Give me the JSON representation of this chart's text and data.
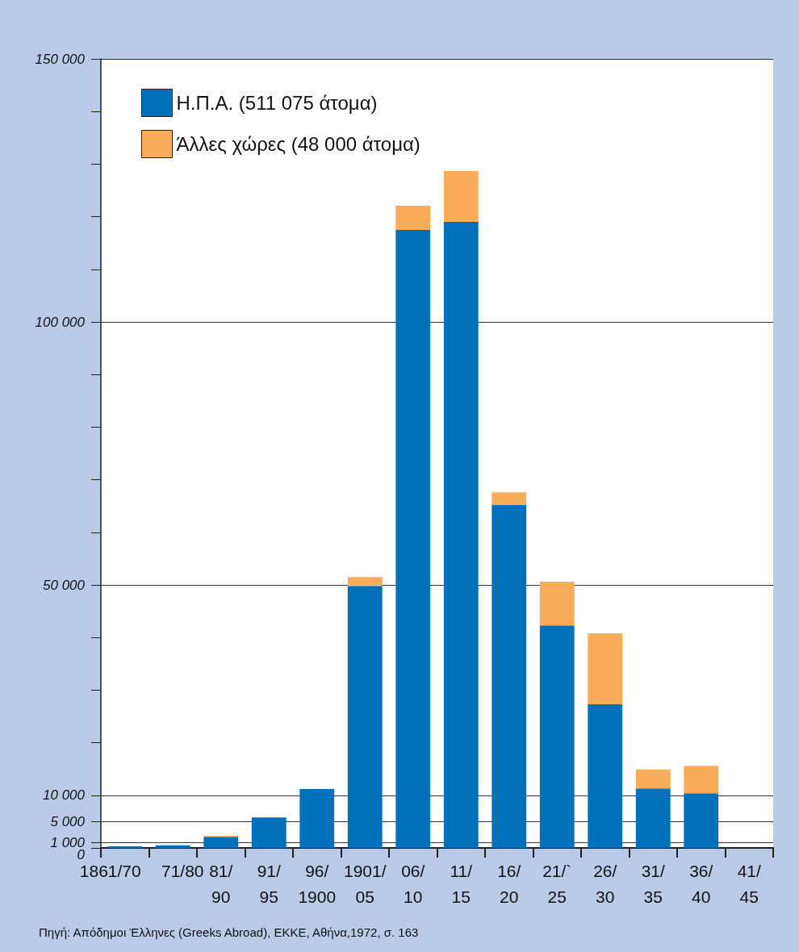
{
  "chart_data": {
    "type": "bar",
    "stacked": true,
    "categories": [
      "1861/70",
      "71/80",
      "81/\n90",
      "91/\n95",
      "96/\n1900",
      "1901/\n05",
      "06/\n10",
      "11/\n15",
      "16/\n20",
      "21/`\n25",
      "26/\n30",
      "31/\n35",
      "36/\n40",
      "41/\n45"
    ],
    "series": [
      {
        "name": "Η.Π.Α. (511 075 άτομα)",
        "color": "#0070bb",
        "values": [
          300,
          500,
          2100,
          5800,
          11200,
          49800,
          117500,
          119000,
          65200,
          42300,
          27300,
          11300,
          10400,
          0
        ]
      },
      {
        "name": "Άλλες χώρες (48 000 άτομα)",
        "color": "#f9ac5a",
        "values": [
          0,
          0,
          200,
          0,
          0,
          1700,
          4600,
          9700,
          2400,
          8300,
          13500,
          3600,
          5200,
          0
        ]
      }
    ],
    "ylim": [
      0,
      150000
    ],
    "yticks": [
      {
        "value": 0,
        "label": "0"
      },
      {
        "value": 1000,
        "label": "1 000"
      },
      {
        "value": 5000,
        "label": "5 000"
      },
      {
        "value": 10000,
        "label": "10 000"
      },
      {
        "value": 20000,
        "label": null
      },
      {
        "value": 30000,
        "label": null
      },
      {
        "value": 40000,
        "label": null
      },
      {
        "value": 50000,
        "label": "50 000"
      },
      {
        "value": 60000,
        "label": null
      },
      {
        "value": 70000,
        "label": null
      },
      {
        "value": 80000,
        "label": null
      },
      {
        "value": 90000,
        "label": null
      },
      {
        "value": 100000,
        "label": "100 000"
      },
      {
        "value": 110000,
        "label": null
      },
      {
        "value": 120000,
        "label": null
      },
      {
        "value": 130000,
        "label": null
      },
      {
        "value": 140000,
        "label": null
      },
      {
        "value": 150000,
        "label": "150 000"
      }
    ],
    "grid": "y",
    "legend": "top left",
    "annotations": [
      "Πηγή: Απόδημοι Έλληνες (Greeks Abroad), ΕΚΚΕ, Αθήνα,1972, σ. 163"
    ]
  }
}
